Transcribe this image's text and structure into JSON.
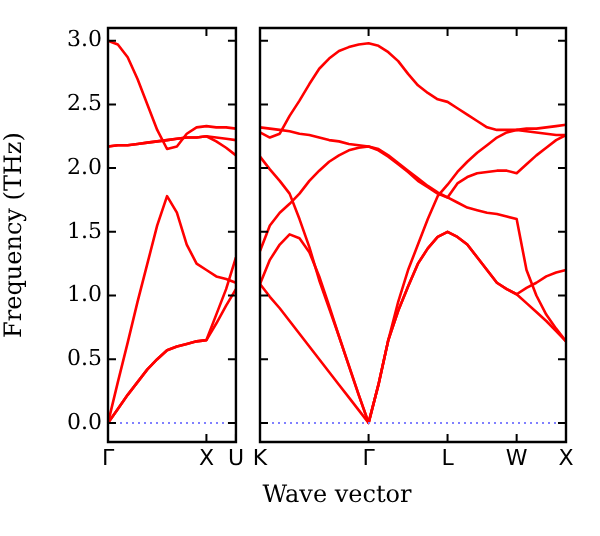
{
  "chart_data": [
    {
      "type": "line",
      "ylabel": "Frequency (THz)",
      "categories": [
        "Γ",
        null,
        null,
        null,
        null,
        null,
        null,
        null,
        null,
        null,
        "X",
        null,
        null,
        "U"
      ],
      "ylim": [
        -0.15,
        3.1
      ],
      "yticks": [
        {
          "value": 0,
          "label": "0.0"
        },
        {
          "value": 0.5,
          "label": "0.5"
        },
        {
          "value": 1,
          "label": "1.0"
        },
        {
          "value": 1.5,
          "label": "1.5"
        },
        {
          "value": 2,
          "label": "2.0"
        },
        {
          "value": 2.5,
          "label": "2.5"
        },
        {
          "value": 3,
          "label": "3.0"
        }
      ],
      "grid": false,
      "legend": false,
      "marker": "none",
      "line_style": "solid",
      "ref_lines": [
        {
          "axis": "y",
          "value": 0,
          "color": "#8080ff",
          "line_style": "dotted"
        }
      ],
      "series": [
        {
          "color": "#ff0000",
          "values": [
            0,
            0.11,
            0.22,
            0.32,
            0.42,
            0.5,
            0.57,
            0.6,
            0.62,
            0.64,
            0.65,
            0.78,
            0.92,
            1.05
          ]
        },
        {
          "color": "#ff0000",
          "values": [
            0,
            0.11,
            0.22,
            0.32,
            0.42,
            0.5,
            0.57,
            0.6,
            0.62,
            0.64,
            0.65,
            0.85,
            1.05,
            1.3
          ]
        },
        {
          "color": "#ff0000",
          "values": [
            0,
            0.32,
            0.63,
            0.95,
            1.25,
            1.55,
            1.78,
            1.65,
            1.4,
            1.25,
            1.2,
            1.15,
            1.13,
            1.1
          ]
        },
        {
          "color": "#ff0000",
          "values": [
            2.17,
            2.18,
            2.18,
            2.19,
            2.2,
            2.21,
            2.22,
            2.23,
            2.24,
            2.24,
            2.25,
            2.24,
            2.23,
            2.22
          ]
        },
        {
          "color": "#ff0000",
          "values": [
            2.17,
            2.18,
            2.18,
            2.19,
            2.2,
            2.21,
            2.22,
            2.23,
            2.24,
            2.24,
            2.25,
            2.21,
            2.16,
            2.1
          ]
        },
        {
          "color": "#ff0000",
          "values": [
            3,
            2.97,
            2.87,
            2.7,
            2.5,
            2.3,
            2.15,
            2.17,
            2.27,
            2.32,
            2.33,
            2.32,
            2.32,
            2.31
          ]
        }
      ]
    },
    {
      "type": "line",
      "xlabel": "Wave vector",
      "categories": [
        "K",
        null,
        null,
        null,
        null,
        null,
        null,
        null,
        null,
        null,
        null,
        "Γ",
        null,
        null,
        null,
        null,
        null,
        null,
        null,
        "L",
        null,
        null,
        null,
        null,
        null,
        null,
        "W",
        null,
        null,
        null,
        null,
        "X"
      ],
      "ylim": [
        -0.15,
        3.1
      ],
      "yticks": [
        0,
        0.5,
        1,
        1.5,
        2,
        2.5,
        3
      ],
      "tick_labels": "x",
      "grid": false,
      "legend": false,
      "marker": "none",
      "line_style": "solid",
      "ref_lines": [
        {
          "axis": "y",
          "value": 0,
          "color": "#8080ff",
          "line_style": "dotted"
        }
      ],
      "series": [
        {
          "color": "#ff0000",
          "values": [
            2.28,
            2.24,
            2.27,
            2.41,
            2.53,
            2.66,
            2.78,
            2.86,
            2.92,
            2.95,
            2.97,
            2.98,
            2.96,
            2.91,
            2.84,
            2.74,
            2.65,
            2.59,
            2.54,
            2.52,
            2.47,
            2.42,
            2.37,
            2.32,
            2.3,
            2.3,
            2.3,
            2.31,
            2.31,
            2.32,
            2.33,
            2.34
          ]
        },
        {
          "color": "#ff0000",
          "values": [
            2.32,
            2.31,
            2.3,
            2.29,
            2.27,
            2.26,
            2.24,
            2.22,
            2.21,
            2.19,
            2.18,
            2.17,
            2.14,
            2.09,
            2.03,
            1.97,
            1.9,
            1.85,
            1.8,
            1.77,
            1.73,
            1.69,
            1.67,
            1.65,
            1.64,
            1.62,
            1.6,
            1.2,
            1,
            0.85,
            0.74,
            0.64
          ]
        },
        {
          "color": "#ff0000",
          "values": [
            1.35,
            1.55,
            1.65,
            1.72,
            1.8,
            1.9,
            1.98,
            2.05,
            2.1,
            2.14,
            2.16,
            2.17,
            2.15,
            2.1,
            2.04,
            1.98,
            1.92,
            1.86,
            1.81,
            1.77,
            1.88,
            1.93,
            1.96,
            1.97,
            1.98,
            1.98,
            1.96,
            2.03,
            2.1,
            2.16,
            2.22,
            2.26
          ]
        },
        {
          "color": "#ff0000",
          "values": [
            2.09,
            1.99,
            1.9,
            1.8,
            1.6,
            1.38,
            1.12,
            0.9,
            0.68,
            0.45,
            0.22,
            0,
            0.3,
            0.65,
            0.95,
            1.2,
            1.4,
            1.6,
            1.78,
            1.87,
            1.97,
            2.05,
            2.12,
            2.18,
            2.24,
            2.28,
            2.3,
            2.29,
            2.28,
            2.27,
            2.26,
            2.26
          ]
        },
        {
          "color": "#ff0000",
          "values": [
            1.09,
            1.28,
            1.4,
            1.48,
            1.45,
            1.34,
            1.15,
            0.92,
            0.68,
            0.45,
            0.22,
            0,
            0.3,
            0.65,
            0.88,
            1.07,
            1.25,
            1.37,
            1.46,
            1.5,
            1.46,
            1.4,
            1.3,
            1.2,
            1.1,
            1.05,
            1.01,
            1.06,
            1.1,
            1.15,
            1.18,
            1.2
          ]
        },
        {
          "color": "#ff0000",
          "values": [
            1.09,
            0.99,
            0.9,
            0.8,
            0.7,
            0.6,
            0.5,
            0.4,
            0.3,
            0.2,
            0.1,
            0,
            0.3,
            0.65,
            0.88,
            1.07,
            1.25,
            1.37,
            1.46,
            1.5,
            1.46,
            1.4,
            1.3,
            1.2,
            1.1,
            1.05,
            1.01,
            0.94,
            0.87,
            0.8,
            0.72,
            0.64
          ]
        }
      ]
    }
  ]
}
